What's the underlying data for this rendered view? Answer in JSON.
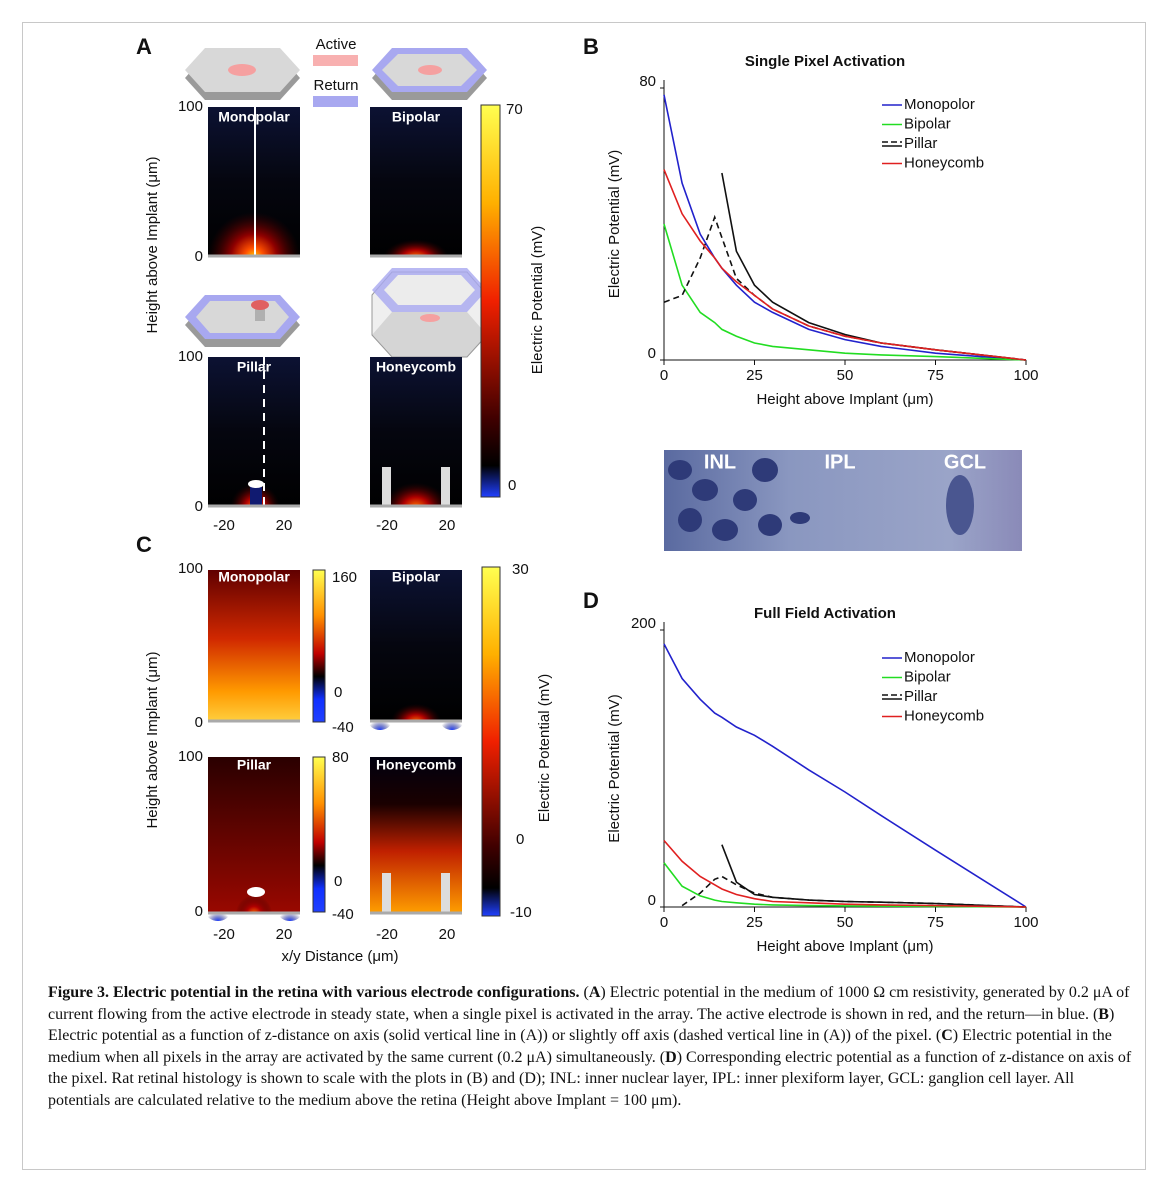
{
  "panel_labels": [
    "A",
    "B",
    "C",
    "D"
  ],
  "panel_a": {
    "legend": [
      "Active",
      "Return"
    ],
    "maps": [
      "Monopolar",
      "Bipolar",
      "Pillar",
      "Honeycomb"
    ],
    "y_ticks": [
      100,
      0
    ],
    "x_ticks": [
      -20,
      20
    ],
    "y_label": "Height above Implant (μm)",
    "colorbar": {
      "label": "Electric Potential (mV)",
      "ticks": [
        70,
        0
      ]
    }
  },
  "panel_c": {
    "maps": [
      "Monopolar",
      "Bipolar",
      "Pillar",
      "Honeycomb"
    ],
    "y_ticks": [
      100,
      0
    ],
    "x_ticks": [
      -20,
      20
    ],
    "y_label": "Height above Implant (μm)",
    "x_label": "x/y Distance (μm)",
    "colorbars": [
      {
        "ticks": [
          160,
          0,
          -40
        ]
      },
      {
        "ticks": [
          80,
          0,
          -40
        ]
      },
      {
        "label": "Electric Potential (mV)",
        "ticks": [
          30,
          0,
          -10
        ]
      }
    ]
  },
  "histology": {
    "layers": [
      "INL",
      "IPL",
      "GCL"
    ]
  },
  "chart_data": [
    {
      "type": "line",
      "title": "Single Pixel Activation",
      "x_label": "Height above Implant (μm)",
      "y_label": "Electric Potential (mV)",
      "x": [
        0,
        5,
        10,
        14,
        16,
        20,
        25,
        30,
        40,
        50,
        60,
        75,
        100
      ],
      "xlim": [
        0,
        100
      ],
      "ylim": [
        0,
        80
      ],
      "xticks": [
        0,
        25,
        50,
        75,
        100
      ],
      "yticks": [
        0,
        80
      ],
      "series": [
        {
          "name": "Monopolor",
          "color": "#2222cc",
          "dash": false,
          "values": [
            78,
            52,
            37,
            30,
            27,
            22,
            17,
            14,
            9,
            6,
            4,
            2,
            0
          ]
        },
        {
          "name": "Bipolar",
          "color": "#22dd22",
          "dash": false,
          "values": [
            40,
            22,
            14,
            11,
            9,
            7,
            5,
            4,
            3,
            2,
            1.5,
            1,
            0
          ]
        },
        {
          "name": "Pillar",
          "color": "#111111",
          "dash": false,
          "values": [
            null,
            null,
            null,
            null,
            55,
            32,
            22,
            17,
            11,
            7.5,
            5,
            3,
            0
          ]
        },
        {
          "color": "#111111",
          "dash": true,
          "values": [
            17,
            19,
            30,
            42,
            36,
            24,
            19,
            15,
            10,
            7,
            5,
            3,
            0
          ]
        },
        {
          "name": "Honeycomb",
          "color": "#e02020",
          "dash": false,
          "values": [
            56,
            43,
            35,
            30,
            27,
            23,
            19,
            15,
            10,
            7,
            5,
            3,
            0
          ]
        }
      ]
    },
    {
      "type": "line",
      "title": "Full Field Activation",
      "x_label": "Height above Implant (μm)",
      "y_label": "Electric Potential (mV)",
      "x": [
        0,
        5,
        10,
        14,
        16,
        20,
        25,
        30,
        40,
        50,
        60,
        75,
        100
      ],
      "xlim": [
        0,
        100
      ],
      "ylim": [
        0,
        200
      ],
      "xticks": [
        0,
        25,
        50,
        75,
        100
      ],
      "yticks": [
        0,
        200
      ],
      "series": [
        {
          "name": "Monopolor",
          "color": "#2222cc",
          "dash": false,
          "values": [
            190,
            165,
            150,
            140,
            137,
            130,
            124,
            116,
            99,
            83,
            66,
            41,
            0
          ]
        },
        {
          "name": "Bipolar",
          "color": "#22dd22",
          "dash": false,
          "values": [
            32,
            15,
            8,
            5,
            4,
            3,
            2,
            1.5,
            1,
            0.8,
            0.6,
            0.4,
            0
          ]
        },
        {
          "name": "Pillar",
          "color": "#111111",
          "dash": false,
          "values": [
            null,
            null,
            null,
            null,
            45,
            18,
            9,
            7,
            5,
            4,
            3.5,
            2.5,
            0
          ]
        },
        {
          "color": "#111111",
          "dash": true,
          "values": [
            null,
            1,
            10,
            20,
            22,
            16,
            10,
            7,
            5,
            4,
            3.5,
            2.5,
            0
          ]
        },
        {
          "name": "Honeycomb",
          "color": "#e02020",
          "dash": false,
          "values": [
            48,
            33,
            22,
            16,
            13,
            9,
            6,
            4,
            3,
            2,
            1.5,
            1,
            0
          ]
        }
      ]
    }
  ],
  "caption": {
    "title": "Figure 3. Electric potential in the retina with various electrode configurations.",
    "parts": [
      " (",
      "A",
      ") Electric potential in the medium of 1000 Ω cm resistivity, generated by 0.2 μA of current flowing from the active electrode in steady state, when a single pixel is activated in the array. The active electrode is shown in red, and the return—in blue. (",
      "B",
      ") Electric potential as a function of z-distance on axis (solid vertical line in (A)) or slightly off axis (dashed vertical line in (A)) of the pixel. (",
      "C",
      ") Electric potential in the medium when all pixels in the array are activated by the same current (0.2 μA) simultaneously. (",
      "D",
      ") Corresponding electric potential as a function of z-distance on axis of the pixel. Rat retinal histology is shown to scale with the plots in (B) and (D); INL: inner nuclear layer, IPL: inner plexiform layer, GCL: ganglion cell layer. All potentials are calculated relative to the medium above the retina (Height above Implant = 100 μm)."
    ]
  }
}
